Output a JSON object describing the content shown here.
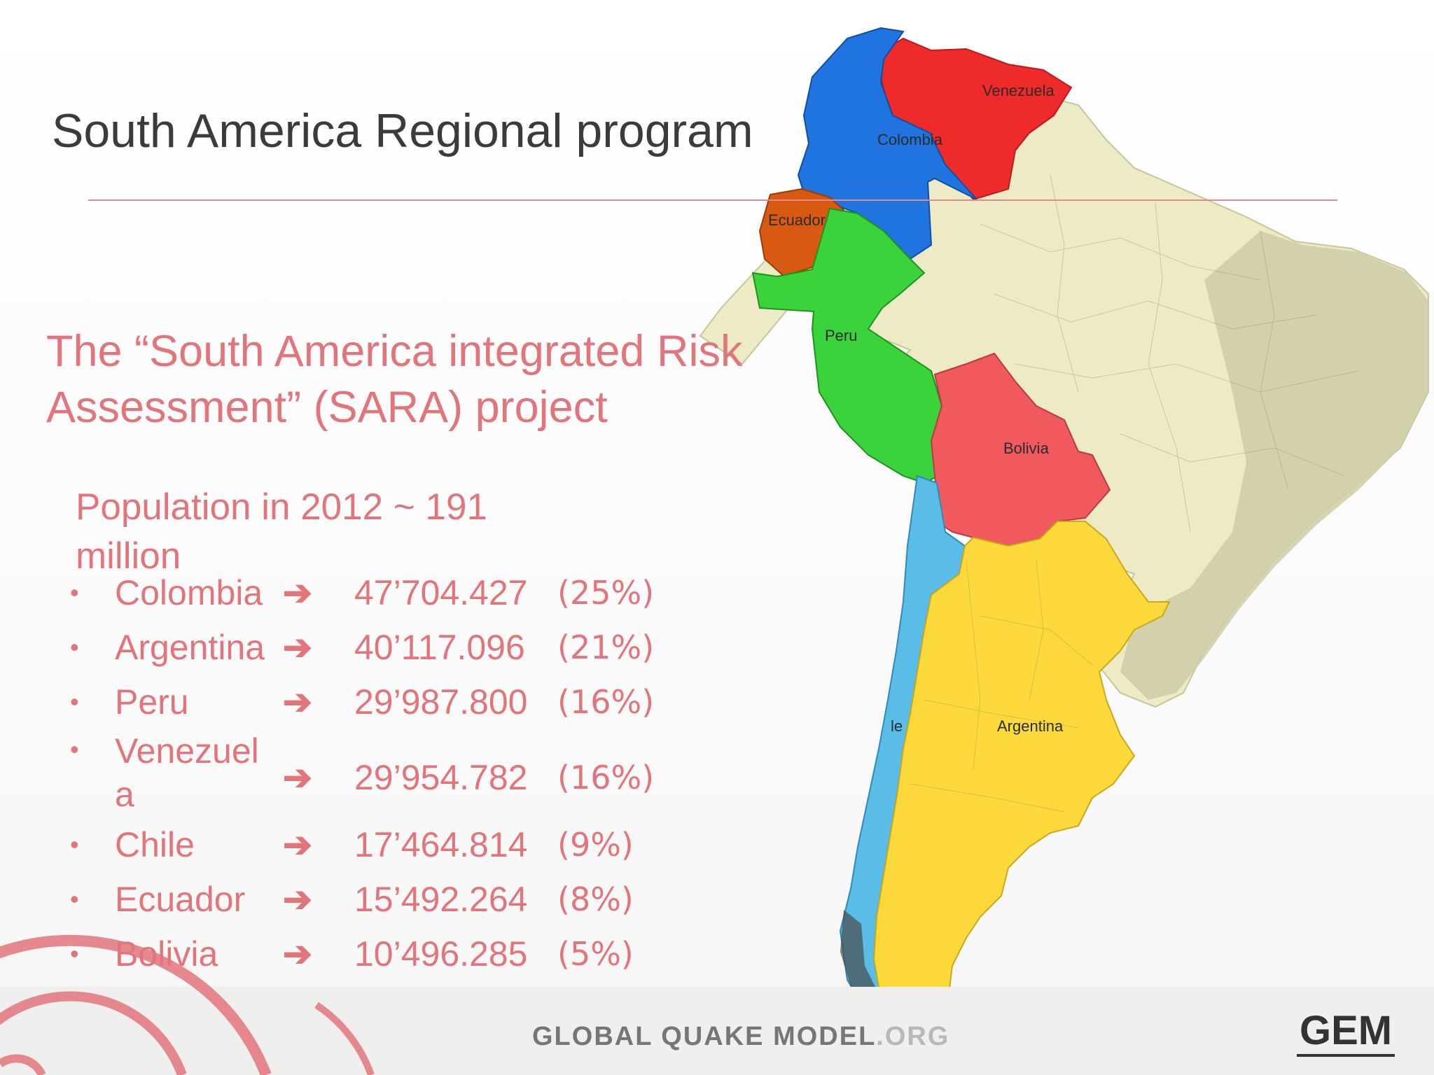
{
  "title": "South America Regional program",
  "subtitle": "The “South America integrated Risk Assessment” (SARA) project",
  "population_summary": "Population in 2012 ~ 191 million",
  "countries": [
    {
      "name": "Colombia",
      "arrow": "➔",
      "population": "47’704.427",
      "share": "(25%)"
    },
    {
      "name": "Argentina",
      "arrow": "➔",
      "population": "40’117.096",
      "share": "(21%)"
    },
    {
      "name": "Peru",
      "arrow": "➔",
      "population": "29’987.800",
      "share": "(16%)"
    },
    {
      "name": "Venezuel a",
      "arrow": "➔",
      "population": "29’954.782",
      "share": "(16%)"
    },
    {
      "name": "Chile",
      "arrow": "➔",
      "population": "17’464.814",
      "share": "(9%)"
    },
    {
      "name": "Ecuador",
      "arrow": "➔",
      "population": "15’492.264",
      "share": "(8%)"
    },
    {
      "name": "Bolivia",
      "arrow": "➔",
      "population": "10’496.285",
      "share": "(5%)"
    }
  ],
  "map_labels": {
    "venezuela": "Venezuela",
    "colombia": "Colombia",
    "ecuador": "Ecuador",
    "peru": "Peru",
    "bolivia": "Bolivia",
    "argentina": "Argentina",
    "chile": "le"
  },
  "colors": {
    "venezuela": "#ee2a2a",
    "colombia": "#1f74e0",
    "ecuador": "#d85a12",
    "peru": "#3bd33b",
    "bolivia": "#f05a5e",
    "argentina": "#fbd93a",
    "chile": "#59bde8",
    "brazil_region": "#ecebc6",
    "brazil_east": "#c9c8a0",
    "text_accent": "#e2757b"
  },
  "footer": {
    "brand": "GLOBAL QUAKE MODEL",
    "brand_suffix": ".ORG",
    "logo": "GEM"
  }
}
